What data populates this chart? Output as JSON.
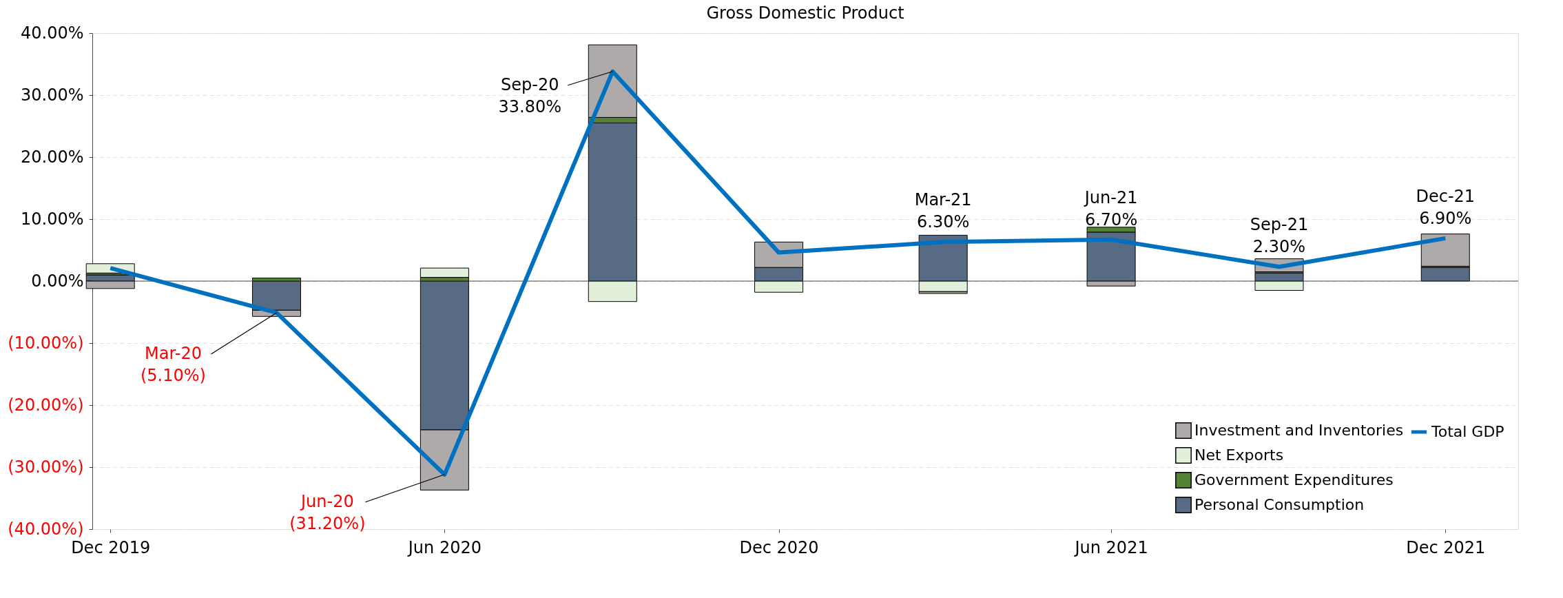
{
  "chart_data": {
    "type": "bar",
    "stacked": true,
    "title": "Gross Domestic Product",
    "x": [
      "2019-12",
      "2020-03",
      "2020-06",
      "2020-09",
      "2020-12",
      "2021-03",
      "2021-06",
      "2021-09",
      "2021-12"
    ],
    "xlim": [
      "2019-11-23",
      "2022-01-08"
    ],
    "xticks": [
      {
        "value": "2019-12",
        "label": "Dec 2019"
      },
      {
        "value": "2020-06",
        "label": "Jun 2020"
      },
      {
        "value": "2020-12",
        "label": "Dec 2020"
      },
      {
        "value": "2021-06",
        "label": "Jun 2021"
      },
      {
        "value": "2021-12",
        "label": "Dec 2021"
      }
    ],
    "ylim": [
      -40,
      40
    ],
    "yticks": [
      {
        "value": -40,
        "label": "(40.00%)"
      },
      {
        "value": -30,
        "label": "(30.00%)"
      },
      {
        "value": -20,
        "label": "(20.00%)"
      },
      {
        "value": -10,
        "label": "(10.00%)"
      },
      {
        "value": 0,
        "label": "0.00%"
      },
      {
        "value": 10,
        "label": "10.00%"
      },
      {
        "value": 20,
        "label": "20.00%"
      },
      {
        "value": 30,
        "label": "30.00%"
      },
      {
        "value": 40,
        "label": "40.00%"
      }
    ],
    "series": [
      {
        "name": "Personal Consumption",
        "color": "#576b85",
        "values": [
          1.0,
          -4.7,
          -24.0,
          25.5,
          2.2,
          7.4,
          7.9,
          1.3,
          2.2
        ]
      },
      {
        "name": "Government Expenditures",
        "color": "#548235",
        "values": [
          0.3,
          0.5,
          0.6,
          0.9,
          null,
          null,
          0.8,
          0.2,
          0.2
        ]
      },
      {
        "name": "Net Exports",
        "color": "#e2efda",
        "values": [
          1.5,
          null,
          1.5,
          -3.3,
          -1.8,
          -1.7,
          null,
          -1.5,
          null
        ]
      },
      {
        "name": "Investment and Inventories",
        "color": "#aeaaaa",
        "values": [
          -1.2,
          -1.0,
          -9.7,
          11.7,
          4.1,
          -0.3,
          -0.8,
          2.1,
          5.2
        ]
      },
      {
        "name": "Total GDP",
        "type": "line",
        "color": "#0070c0",
        "values": [
          2.1,
          -5.1,
          -31.2,
          33.8,
          4.6,
          6.3,
          6.7,
          2.3,
          6.9
        ]
      }
    ],
    "annotations": [
      {
        "text": "Mar-20\n(5.10%)",
        "x": "2020-03",
        "y": -5.1
      },
      {
        "text": "Jun-20\n(31.20%)",
        "x": "2020-06",
        "y": -31.2
      },
      {
        "text": "Sep-20\n33.80%",
        "x": "2020-09",
        "y": 33.8
      },
      {
        "text": "Mar-21\n6.30%",
        "x": "2021-03",
        "y": 6.3
      },
      {
        "text": "Jun-21\n6.70%",
        "x": "2021-06",
        "y": 6.7
      },
      {
        "text": "Sep-21\n2.30%",
        "x": "2021-09",
        "y": 2.3
      },
      {
        "text": "Dec-21\n6.90%",
        "x": "2021-12",
        "y": 6.9
      }
    ],
    "grid": "y",
    "legend": "bottom right"
  }
}
